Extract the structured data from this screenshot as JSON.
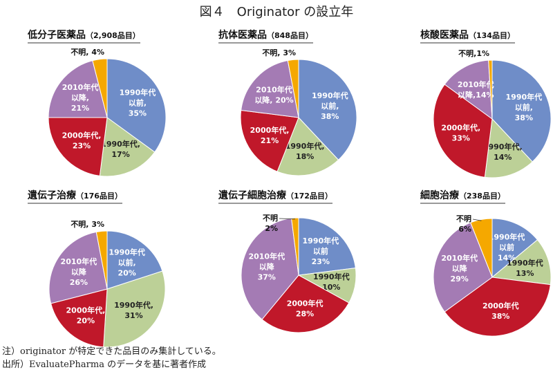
{
  "figure_title": "図４　Originator の設立年",
  "colors": {
    "before_1990s": "#6f8dc8",
    "1990s": "#bcd097",
    "2000s": "#c0182a",
    "2010s_after": "#a47bb4",
    "unknown": "#f5a800"
  },
  "chart_data": [
    {
      "type": "pie",
      "title": "低分子医薬品",
      "subtitle": "（2,908品目）",
      "categories": [
        "1990年代以前",
        "1990年代",
        "2000年代",
        "2010年代以降",
        "不明"
      ],
      "values": [
        35,
        17,
        23,
        21,
        4
      ],
      "labels": [
        "1990年代\n以前,\n35%",
        "1990年代,\n17%",
        "2000年代,\n23%",
        "2010年代\n以降,\n21%",
        "不明, 4%"
      ]
    },
    {
      "type": "pie",
      "title": "抗体医薬品",
      "subtitle": "（848品目）",
      "categories": [
        "1990年代以前",
        "1990年代",
        "2000年代",
        "2010年代以降",
        "不明"
      ],
      "values": [
        38,
        18,
        21,
        20,
        3
      ],
      "labels": [
        "1990年代\n以前,\n38%",
        "1990年代,\n18%",
        "2000年代,\n21%",
        "2010年代\n以降, 20%",
        "不明, 3%"
      ]
    },
    {
      "type": "pie",
      "title": "核酸医薬品",
      "subtitle": "（134品目）",
      "categories": [
        "1990年代以前",
        "1990年代",
        "2000年代",
        "2010年代以降",
        "不明"
      ],
      "values": [
        38,
        14,
        33,
        14,
        1
      ],
      "labels": [
        "1990年代\n以前,\n38%",
        "1990年代,\n14%",
        "2000年代,\n33%",
        "2010年代\n以降,14%",
        "不明,1%"
      ]
    },
    {
      "type": "pie",
      "title": "遺伝子治療",
      "subtitle": "（176品目）",
      "categories": [
        "1990年代以前",
        "1990年代",
        "2000年代",
        "2010年代以降",
        "不明"
      ],
      "values": [
        20,
        31,
        20,
        26,
        3
      ],
      "labels": [
        "1990年代\n以前,\n20%",
        "1990年代,\n31%",
        "2000年代,\n20%",
        "2010年代\n以降\n26%",
        "不明, 3%"
      ]
    },
    {
      "type": "pie",
      "title": "遺伝子細胞治療",
      "subtitle": "（172品目）",
      "categories": [
        "1990年代以前",
        "1990年代",
        "2000年代",
        "2010年代以降",
        "不明"
      ],
      "values": [
        23,
        10,
        28,
        37,
        2
      ],
      "labels": [
        "1990年代\n以前\n23%",
        "1990年代\n10%",
        "2000年代\n28%",
        "2010年代\n以降\n37%",
        "不明\n2%"
      ]
    },
    {
      "type": "pie",
      "title": "細胞治療",
      "subtitle": "（238品目）",
      "categories": [
        "1990年代以前",
        "1990年代",
        "2000年代",
        "2010年代以降",
        "不明"
      ],
      "values": [
        14,
        13,
        38,
        29,
        6
      ],
      "labels": [
        "1990年代\n以前\n14%",
        "1990年代\n13%",
        "2000年代\n38%",
        "2010年代\n以降\n29%",
        "不明\n6%"
      ]
    }
  ],
  "notes": [
    "注）originator が特定できた品目のみ集計している。",
    "出所）EvaluatePharma のデータを基に著者作成"
  ]
}
